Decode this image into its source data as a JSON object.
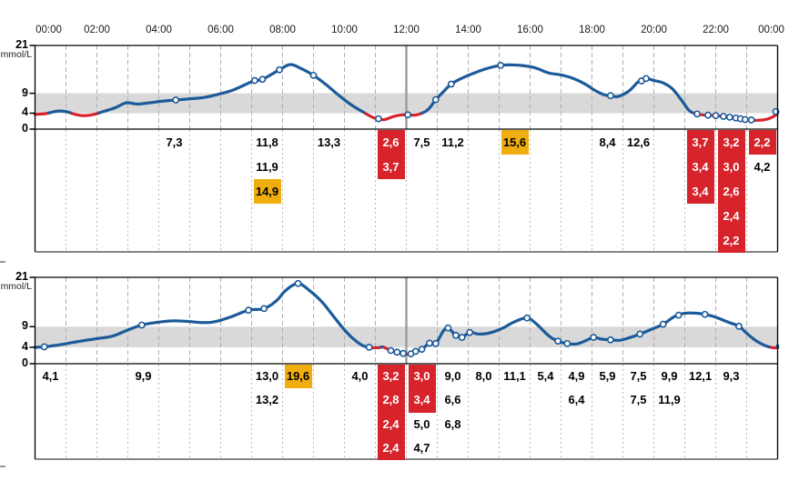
{
  "colors": {
    "curve_blue": "#1c5a99",
    "curve_red": "#d7232b",
    "band_gray": "#d9d9d9",
    "grid": "#b0b0b0",
    "noon_line": "#9c9c9c",
    "axis": "#000000",
    "table_border": "#3c3c3c",
    "table_grid": "#b9b9b9",
    "cell_red_bg": "#d7232b",
    "cell_yellow_bg": "#efad0e",
    "marker_fill": "#ffffff"
  },
  "time_axis": {
    "labels": [
      {
        "t": 0,
        "text": "00:00"
      },
      {
        "t": 2,
        "text": "02:00"
      },
      {
        "t": 4,
        "text": "04:00"
      },
      {
        "t": 6,
        "text": "06:00"
      },
      {
        "t": 8,
        "text": "08:00"
      },
      {
        "t": 10,
        "text": "10:00"
      },
      {
        "t": 12,
        "text": "12:00"
      },
      {
        "t": 14,
        "text": "14:00"
      },
      {
        "t": 16,
        "text": "16:00"
      },
      {
        "t": 18,
        "text": "18:00"
      },
      {
        "t": 20,
        "text": "20:00"
      },
      {
        "t": 22,
        "text": "22:00"
      },
      {
        "t": 24,
        "text": "00:00"
      }
    ]
  },
  "chart_data": [
    {
      "type": "line",
      "title": "glucose-day-1",
      "unit": "mmol/L",
      "ylim": [
        0,
        21
      ],
      "yticks": [
        {
          "v": 21,
          "text": "21"
        },
        {
          "v": 9,
          "text": "9"
        },
        {
          "v": 4,
          "text": "4"
        },
        {
          "v": 0,
          "text": "0"
        }
      ],
      "target_band": [
        4,
        9
      ],
      "hypo_threshold": 4,
      "x_hours_range": [
        0,
        24
      ],
      "curve": [
        [
          0,
          3.7
        ],
        [
          0.35,
          3.9
        ],
        [
          0.7,
          4.5
        ],
        [
          1.0,
          4.4
        ],
        [
          1.3,
          3.7
        ],
        [
          1.55,
          3.4
        ],
        [
          1.85,
          3.6
        ],
        [
          2.2,
          4.4
        ],
        [
          2.6,
          5.4
        ],
        [
          2.95,
          6.6
        ],
        [
          3.3,
          6.3
        ],
        [
          3.7,
          6.6
        ],
        [
          4.1,
          7.0
        ],
        [
          4.55,
          7.3
        ],
        [
          5.0,
          7.6
        ],
        [
          5.5,
          8.0
        ],
        [
          6.0,
          8.9
        ],
        [
          6.4,
          9.8
        ],
        [
          6.8,
          11.2
        ],
        [
          7.1,
          12.2
        ],
        [
          7.35,
          12.5
        ],
        [
          7.9,
          14.9
        ],
        [
          8.25,
          16.2
        ],
        [
          8.6,
          15.2
        ],
        [
          9.0,
          13.5
        ],
        [
          9.4,
          11.2
        ],
        [
          9.8,
          8.6
        ],
        [
          10.2,
          6.2
        ],
        [
          10.6,
          4.3
        ],
        [
          10.9,
          3.0
        ],
        [
          11.1,
          2.6
        ],
        [
          11.3,
          2.4
        ],
        [
          11.6,
          3.2
        ],
        [
          11.9,
          3.6
        ],
        [
          12.15,
          3.5
        ],
        [
          12.4,
          3.7
        ],
        [
          12.7,
          4.9
        ],
        [
          12.95,
          7.4
        ],
        [
          13.2,
          9.4
        ],
        [
          13.45,
          11.3
        ],
        [
          13.8,
          12.8
        ],
        [
          14.2,
          14.1
        ],
        [
          14.6,
          15.2
        ],
        [
          15.05,
          16.0
        ],
        [
          15.5,
          16.1
        ],
        [
          15.9,
          15.8
        ],
        [
          16.2,
          15.3
        ],
        [
          16.6,
          14.1
        ],
        [
          17.0,
          13.6
        ],
        [
          17.4,
          12.7
        ],
        [
          17.8,
          11.2
        ],
        [
          18.1,
          9.7
        ],
        [
          18.4,
          8.6
        ],
        [
          18.6,
          8.4
        ],
        [
          18.85,
          8.2
        ],
        [
          19.2,
          9.6
        ],
        [
          19.5,
          11.9
        ],
        [
          19.75,
          12.7
        ],
        [
          20.0,
          12.2
        ],
        [
          20.3,
          11.6
        ],
        [
          20.6,
          10.1
        ],
        [
          20.9,
          7.2
        ],
        [
          21.15,
          4.6
        ],
        [
          21.4,
          3.8
        ],
        [
          21.7,
          3.5
        ],
        [
          22.0,
          3.4
        ],
        [
          22.25,
          3.2
        ],
        [
          22.5,
          3.0
        ],
        [
          22.7,
          2.7
        ],
        [
          22.9,
          2.5
        ],
        [
          23.1,
          2.3
        ],
        [
          23.3,
          2.2
        ],
        [
          23.6,
          2.4
        ],
        [
          23.85,
          3.1
        ],
        [
          24.08,
          4.4
        ]
      ],
      "markers": [
        [
          4.55,
          7.3
        ],
        [
          7.1,
          12.2
        ],
        [
          7.35,
          12.5
        ],
        [
          7.9,
          14.9
        ],
        [
          9.0,
          13.5
        ],
        [
          11.1,
          2.6
        ],
        [
          12.05,
          3.6
        ],
        [
          12.95,
          7.4
        ],
        [
          13.45,
          11.3
        ],
        [
          15.05,
          16.0
        ],
        [
          18.6,
          8.4
        ],
        [
          19.6,
          12.1
        ],
        [
          19.75,
          12.7
        ],
        [
          21.4,
          3.8
        ],
        [
          21.75,
          3.5
        ],
        [
          22.0,
          3.4
        ],
        [
          22.25,
          3.2
        ],
        [
          22.45,
          3.0
        ],
        [
          22.65,
          2.8
        ],
        [
          22.8,
          2.6
        ],
        [
          22.95,
          2.4
        ],
        [
          23.15,
          2.3
        ],
        [
          24.05,
          4.4
        ]
      ],
      "table_values": [
        {
          "hour": 4,
          "values": [
            {
              "text": "7,3",
              "style": "plain"
            }
          ]
        },
        {
          "hour": 7,
          "values": [
            {
              "text": "11,8",
              "style": "plain"
            },
            {
              "text": "11,9",
              "style": "plain"
            },
            {
              "text": "14,9",
              "style": "yellow"
            }
          ]
        },
        {
          "hour": 9,
          "values": [
            {
              "text": "13,3",
              "style": "plain"
            }
          ]
        },
        {
          "hour": 11,
          "values": [
            {
              "text": "2,6",
              "style": "red"
            },
            {
              "text": "3,7",
              "style": "red"
            }
          ]
        },
        {
          "hour": 12,
          "values": [
            {
              "text": "7,5",
              "style": "plain"
            }
          ]
        },
        {
          "hour": 13,
          "values": [
            {
              "text": "11,2",
              "style": "plain"
            }
          ]
        },
        {
          "hour": 15,
          "values": [
            {
              "text": "15,6",
              "style": "yellow"
            }
          ]
        },
        {
          "hour": 18,
          "values": [
            {
              "text": "8,4",
              "style": "plain"
            }
          ]
        },
        {
          "hour": 19,
          "values": [
            {
              "text": "12,6",
              "style": "plain"
            }
          ]
        },
        {
          "hour": 21,
          "values": [
            {
              "text": "3,7",
              "style": "red"
            },
            {
              "text": "3,4",
              "style": "red"
            },
            {
              "text": "3,4",
              "style": "red"
            }
          ]
        },
        {
          "hour": 22,
          "values": [
            {
              "text": "3,2",
              "style": "red"
            },
            {
              "text": "3,0",
              "style": "red"
            },
            {
              "text": "2,6",
              "style": "red"
            },
            {
              "text": "2,4",
              "style": "red"
            },
            {
              "text": "2,2",
              "style": "red"
            }
          ]
        },
        {
          "hour": 23,
          "values": [
            {
              "text": "2,2",
              "style": "red"
            },
            {
              "text": "4,2",
              "style": "plain"
            }
          ]
        }
      ]
    },
    {
      "type": "line",
      "title": "glucose-day-2",
      "unit": "mmol/L",
      "ylim": [
        0,
        21
      ],
      "yticks": [
        {
          "v": 21,
          "text": "21"
        },
        {
          "v": 9,
          "text": "9"
        },
        {
          "v": 4,
          "text": "4"
        },
        {
          "v": 0,
          "text": "0"
        }
      ],
      "target_band": [
        4,
        9
      ],
      "hypo_threshold": 4,
      "x_hours_range": [
        0,
        24
      ],
      "curve": [
        [
          0,
          4.0
        ],
        [
          0.3,
          4.1
        ],
        [
          0.8,
          4.6
        ],
        [
          1.4,
          5.4
        ],
        [
          2.0,
          6.1
        ],
        [
          2.5,
          6.7
        ],
        [
          3.0,
          8.2
        ],
        [
          3.45,
          9.4
        ],
        [
          3.9,
          10.0
        ],
        [
          4.4,
          10.4
        ],
        [
          4.9,
          10.3
        ],
        [
          5.4,
          10.0
        ],
        [
          5.8,
          10.2
        ],
        [
          6.3,
          11.3
        ],
        [
          6.9,
          13.0
        ],
        [
          7.4,
          13.4
        ],
        [
          7.8,
          15.3
        ],
        [
          8.1,
          17.8
        ],
        [
          8.5,
          19.5
        ],
        [
          8.9,
          17.6
        ],
        [
          9.3,
          14.8
        ],
        [
          9.7,
          11.0
        ],
        [
          10.1,
          7.4
        ],
        [
          10.5,
          4.8
        ],
        [
          10.8,
          3.95
        ],
        [
          11.1,
          3.9
        ],
        [
          11.25,
          4.05
        ],
        [
          11.5,
          3.2
        ],
        [
          11.7,
          2.8
        ],
        [
          11.9,
          2.5
        ],
        [
          12.1,
          2.3
        ],
        [
          12.3,
          3.0
        ],
        [
          12.5,
          3.5
        ],
        [
          12.75,
          5.0
        ],
        [
          12.95,
          4.9
        ],
        [
          13.2,
          8.0
        ],
        [
          13.35,
          8.7
        ],
        [
          13.6,
          6.9
        ],
        [
          13.8,
          6.4
        ],
        [
          14.05,
          7.6
        ],
        [
          14.35,
          7.2
        ],
        [
          14.7,
          7.5
        ],
        [
          15.1,
          8.6
        ],
        [
          15.5,
          10.2
        ],
        [
          15.9,
          11.1
        ],
        [
          16.2,
          9.7
        ],
        [
          16.6,
          6.8
        ],
        [
          16.9,
          5.5
        ],
        [
          17.2,
          4.9
        ],
        [
          17.5,
          4.8
        ],
        [
          17.8,
          5.6
        ],
        [
          18.05,
          6.4
        ],
        [
          18.3,
          6.0
        ],
        [
          18.6,
          5.8
        ],
        [
          18.9,
          5.7
        ],
        [
          19.2,
          6.3
        ],
        [
          19.55,
          7.2
        ],
        [
          19.9,
          8.3
        ],
        [
          20.3,
          9.6
        ],
        [
          20.65,
          11.4
        ],
        [
          20.95,
          12.2
        ],
        [
          21.3,
          12.3
        ],
        [
          21.65,
          12.0
        ],
        [
          22.0,
          11.3
        ],
        [
          22.4,
          10.1
        ],
        [
          22.75,
          9.1
        ],
        [
          23.0,
          7.4
        ],
        [
          23.3,
          5.6
        ],
        [
          23.6,
          4.4
        ],
        [
          23.85,
          3.9
        ],
        [
          24.05,
          3.95
        ],
        [
          24.15,
          4.4
        ]
      ],
      "markers": [
        [
          0.3,
          4.1
        ],
        [
          3.45,
          9.4
        ],
        [
          6.9,
          13.0
        ],
        [
          7.4,
          13.4
        ],
        [
          8.5,
          19.5
        ],
        [
          10.8,
          4.0
        ],
        [
          11.5,
          3.2
        ],
        [
          11.7,
          2.8
        ],
        [
          11.9,
          2.5
        ],
        [
          12.15,
          2.4
        ],
        [
          12.3,
          3.0
        ],
        [
          12.5,
          3.5
        ],
        [
          12.75,
          5.0
        ],
        [
          12.95,
          4.9
        ],
        [
          13.35,
          8.7
        ],
        [
          13.6,
          6.9
        ],
        [
          13.8,
          6.4
        ],
        [
          14.05,
          7.6
        ],
        [
          15.9,
          11.1
        ],
        [
          16.9,
          5.5
        ],
        [
          17.2,
          4.9
        ],
        [
          18.05,
          6.4
        ],
        [
          18.6,
          5.8
        ],
        [
          19.55,
          7.2
        ],
        [
          20.3,
          9.6
        ],
        [
          20.8,
          11.8
        ],
        [
          21.65,
          12.0
        ],
        [
          22.75,
          9.1
        ]
      ],
      "table_values": [
        {
          "hour": 0,
          "values": [
            {
              "text": "4,1",
              "style": "plain"
            }
          ]
        },
        {
          "hour": 3,
          "values": [
            {
              "text": "9,9",
              "style": "plain"
            }
          ]
        },
        {
          "hour": 7,
          "values": [
            {
              "text": "13,0",
              "style": "plain"
            },
            {
              "text": "13,2",
              "style": "plain"
            }
          ]
        },
        {
          "hour": 8,
          "values": [
            {
              "text": "19,6",
              "style": "yellow"
            }
          ]
        },
        {
          "hour": 10,
          "values": [
            {
              "text": "4,0",
              "style": "plain"
            }
          ]
        },
        {
          "hour": 11,
          "values": [
            {
              "text": "3,2",
              "style": "red"
            },
            {
              "text": "2,8",
              "style": "red"
            },
            {
              "text": "2,4",
              "style": "red"
            },
            {
              "text": "2,4",
              "style": "red"
            }
          ]
        },
        {
          "hour": 12,
          "values": [
            {
              "text": "3,0",
              "style": "red"
            },
            {
              "text": "3,4",
              "style": "red"
            },
            {
              "text": "5,0",
              "style": "plain"
            },
            {
              "text": "4,7",
              "style": "plain"
            }
          ]
        },
        {
          "hour": 13,
          "values": [
            {
              "text": "9,0",
              "style": "plain"
            },
            {
              "text": "6,6",
              "style": "plain"
            },
            {
              "text": "6,8",
              "style": "plain"
            }
          ]
        },
        {
          "hour": 14,
          "values": [
            {
              "text": "8,0",
              "style": "plain"
            }
          ]
        },
        {
          "hour": 15,
          "values": [
            {
              "text": "11,1",
              "style": "plain"
            }
          ]
        },
        {
          "hour": 16,
          "values": [
            {
              "text": "5,4",
              "style": "plain"
            }
          ]
        },
        {
          "hour": 17,
          "values": [
            {
              "text": "4,9",
              "style": "plain"
            },
            {
              "text": "6,4",
              "style": "plain"
            }
          ]
        },
        {
          "hour": 18,
          "values": [
            {
              "text": "5,9",
              "style": "plain"
            }
          ]
        },
        {
          "hour": 19,
          "values": [
            {
              "text": "7,5",
              "style": "plain"
            },
            {
              "text": "7,5",
              "style": "plain"
            }
          ]
        },
        {
          "hour": 20,
          "values": [
            {
              "text": "9,9",
              "style": "plain"
            },
            {
              "text": "11,9",
              "style": "plain"
            }
          ]
        },
        {
          "hour": 21,
          "values": [
            {
              "text": "12,1",
              "style": "plain"
            }
          ]
        },
        {
          "hour": 22,
          "values": [
            {
              "text": "9,3",
              "style": "plain"
            }
          ]
        }
      ]
    }
  ]
}
